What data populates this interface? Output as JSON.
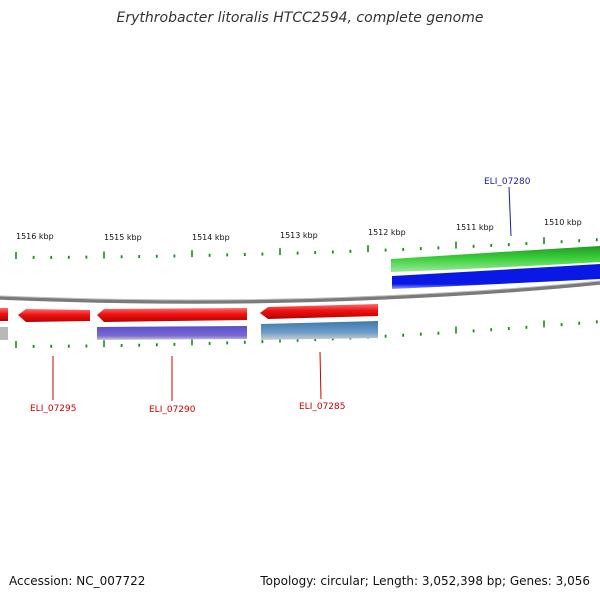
{
  "title": "Erythrobacter litoralis HTCC2594, complete genome",
  "footer": {
    "accession": "Accession: NC_007722",
    "summary": "Topology: circular; Length: 3,052,398 bp; Genes: 3,056"
  },
  "ticks": [
    "1516 kbp",
    "1515 kbp",
    "1514 kbp",
    "1513 kbp",
    "1512 kbp",
    "1511 kbp",
    "1510 kbp"
  ],
  "genes": {
    "g07280": "ELI_07280",
    "g07285": "ELI_07285",
    "g07290": "ELI_07290",
    "g07295": "ELI_07295"
  },
  "colors": {
    "forward_label": "#1a1aa6",
    "reverse_label": "#cc0000",
    "gene_reverse": "#ee1111",
    "gene_forward": "#2ec42e",
    "cds_forward": "#0a18e6",
    "cds_purple": "#6a5acd",
    "cds_steel": "#4682b4",
    "tick": "#1e8a1e",
    "backbone": "#7a7a7a"
  }
}
